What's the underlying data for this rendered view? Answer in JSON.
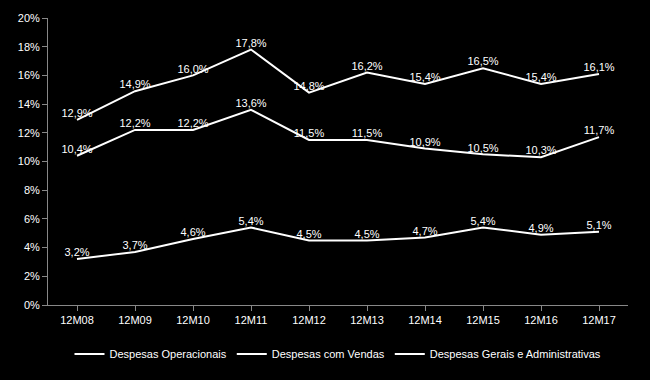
{
  "chart_data": {
    "type": "line",
    "categories": [
      "12M08",
      "12M09",
      "12M10",
      "12M11",
      "12M12",
      "12M13",
      "12M14",
      "12M15",
      "12M16",
      "12M17"
    ],
    "series": [
      {
        "name": "Despesas Operacionais",
        "color": "#ffffff",
        "values": [
          12.9,
          14.9,
          16.0,
          17.8,
          14.8,
          16.2,
          15.4,
          16.5,
          15.4,
          16.1
        ],
        "value_labels": [
          "12,9%",
          "14,9%",
          "16,0%",
          "17,8%",
          "14,8%",
          "16,2%",
          "15,4%",
          "16,5%",
          "15,4%",
          "16,1%"
        ]
      },
      {
        "name": "Despesas com Vendas",
        "color": "#ffffff",
        "values": [
          10.4,
          12.2,
          12.2,
          13.6,
          11.5,
          11.5,
          10.9,
          10.5,
          10.3,
          11.7
        ],
        "value_labels": [
          "10,4%",
          "12,2%",
          "12,2%",
          "13,6%",
          "11,5%",
          "11,5%",
          "10,9%",
          "10,5%",
          "10,3%",
          "11,7%"
        ]
      },
      {
        "name": "Despesas Gerais e Administrativas",
        "color": "#ffffff",
        "values": [
          3.2,
          3.7,
          4.6,
          5.4,
          4.5,
          4.5,
          4.7,
          5.4,
          4.9,
          5.1
        ],
        "value_labels": [
          "3,2%",
          "3,7%",
          "4,6%",
          "5,4%",
          "4,5%",
          "4,5%",
          "4,7%",
          "5,4%",
          "4,9%",
          "5,1%"
        ]
      }
    ],
    "ylim": [
      0,
      20
    ],
    "yticks": [
      {
        "value": 0,
        "label": "0%"
      },
      {
        "value": 2,
        "label": "2%"
      },
      {
        "value": 4,
        "label": "4%"
      },
      {
        "value": 6,
        "label": "6%"
      },
      {
        "value": 8,
        "label": "8%"
      },
      {
        "value": 10,
        "label": "10%"
      },
      {
        "value": 12,
        "label": "12%"
      },
      {
        "value": 14,
        "label": "14%"
      },
      {
        "value": 16,
        "label": "16%"
      },
      {
        "value": 18,
        "label": "18%"
      },
      {
        "value": 20,
        "label": "20%"
      }
    ],
    "grid": false,
    "legend": "bottom",
    "data_labels": true
  }
}
